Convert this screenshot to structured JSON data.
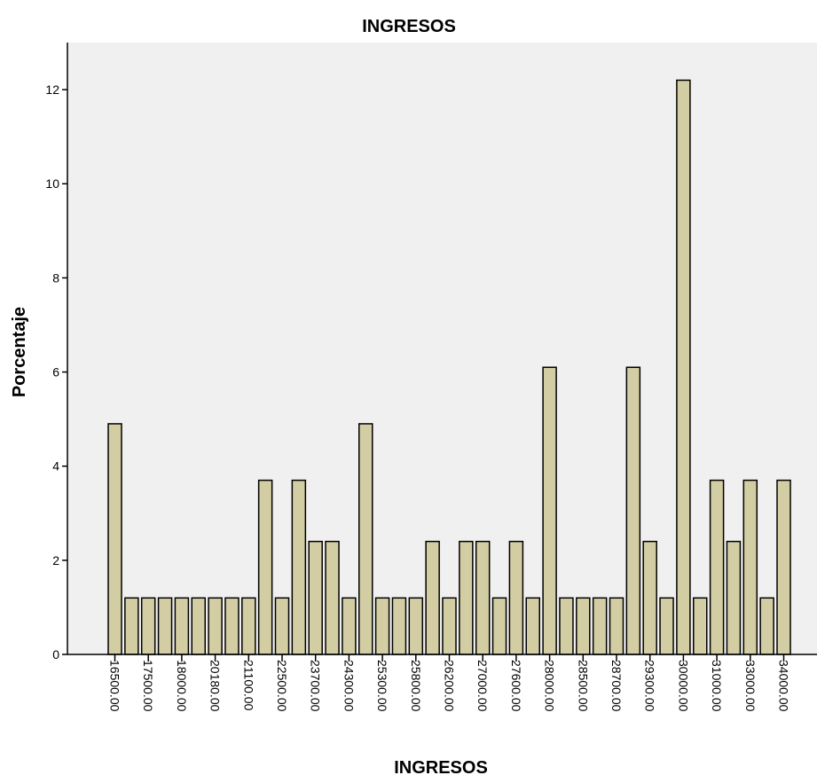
{
  "chart_data": {
    "type": "bar",
    "title": "INGRESOS",
    "xlabel": "INGRESOS",
    "ylabel": "Porcentaje",
    "ylim": [
      0,
      13
    ],
    "yticks": [
      0,
      2,
      4,
      6,
      8,
      10,
      12
    ],
    "grid": false,
    "colors": {
      "plot_bg": "#f0f0f0",
      "bar_fill": "#d3cda3",
      "bar_stroke": "#000000"
    },
    "categories": [
      "16500.00",
      "",
      "17500.00",
      "",
      "18000.00",
      "",
      "20180.00",
      "",
      "21100.00",
      "",
      "22500.00",
      "",
      "23700.00",
      "",
      "24300.00",
      "",
      "25300.00",
      "",
      "25800.00",
      "",
      "26200.00",
      "",
      "27000.00",
      "",
      "27600.00",
      "",
      "28000.00",
      "",
      "28500.00",
      "",
      "28700.00",
      "",
      "29300.00",
      "",
      "30000.00",
      "",
      "31000.00",
      "",
      "33000.00",
      "",
      "34000.00"
    ],
    "values": [
      4.9,
      1.2,
      1.2,
      1.2,
      1.2,
      1.2,
      1.2,
      1.2,
      1.2,
      3.7,
      1.2,
      3.7,
      2.4,
      2.4,
      1.2,
      4.9,
      1.2,
      1.2,
      1.2,
      2.4,
      1.2,
      2.4,
      2.4,
      1.2,
      2.4,
      1.2,
      6.1,
      1.2,
      1.2,
      1.2,
      1.2,
      6.1,
      2.4,
      1.2,
      12.2,
      1.2,
      3.7,
      2.4,
      3.7,
      1.2,
      3.7
    ]
  }
}
